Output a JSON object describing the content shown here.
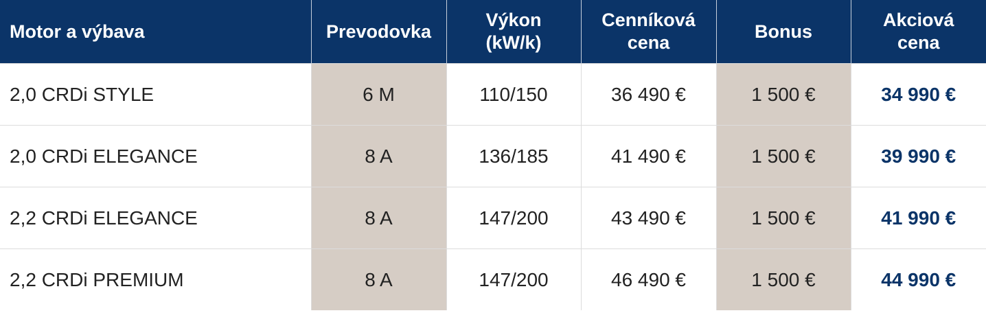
{
  "table": {
    "header": [
      [
        "Motor a výbava"
      ],
      [
        "Prevodovka"
      ],
      [
        "Výkon",
        "(kW/k)"
      ],
      [
        "Cenníková",
        "cena"
      ],
      [
        "Bonus"
      ],
      [
        "Akciová",
        "cena"
      ]
    ],
    "rows": [
      [
        "2,0 CRDi STYLE",
        "6 M",
        "110/150",
        "36 490 €",
        "1 500 €",
        "34 990 €"
      ],
      [
        "2,0 CRDi ELEGANCE",
        "8 A",
        "136/185",
        "41 490 €",
        "1 500 €",
        "39 990 €"
      ],
      [
        "2,2 CRDi ELEGANCE",
        "8 A",
        "147/200",
        "43 490 €",
        "1 500 €",
        "41 990 €"
      ],
      [
        "2,2 CRDi PREMIUM",
        "8 A",
        "147/200",
        "46 490 €",
        "1 500 €",
        "44 990 €"
      ]
    ]
  }
}
